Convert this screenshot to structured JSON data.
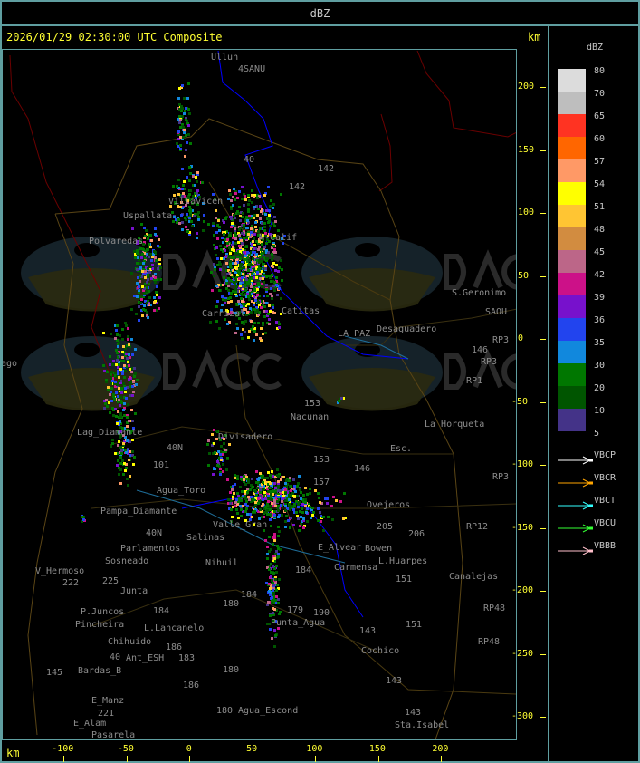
{
  "header": {
    "title": "dBZ"
  },
  "map": {
    "title": "2026/01/29 02:30:00 UTC Composite",
    "unit_top": "km",
    "unit_bottom": "km",
    "x_ticks": [
      "-100",
      "-50",
      "0",
      "50",
      "100",
      "150",
      "200"
    ],
    "y_ticks": [
      "200",
      "150",
      "100",
      "50",
      "0",
      "-50",
      "-100",
      "-150",
      "-200",
      "-250",
      "-300"
    ],
    "place_labels": [
      "Ullun",
      "4SANU",
      "Uspallata",
      "Polvaredas",
      "Villavicen",
      "40",
      "142",
      "142",
      "N-Calif",
      "Carrizal",
      "Catitas",
      "Desaguadero",
      "S.Geronimo",
      "SAOU",
      "LA PAZ",
      "146",
      "RP3",
      "RP3",
      "RP1",
      "153",
      "Nacunan",
      "La Horqueta",
      "Esc.",
      "153",
      "146",
      "157",
      "Divisadero",
      "Lag_Diamante",
      "40N",
      "101",
      "Agua_Toro",
      "Pampa_Diamante",
      "40N",
      "Parlamentos",
      "Sosneado",
      "V_Hermoso",
      "222",
      "225",
      "Junta",
      "Salinas",
      "Nihuil",
      "Valle_Gran",
      "Ovejeros",
      "205",
      "206",
      "E_Alvear",
      "Bowen",
      "Carmensa",
      "L.Huarpes",
      "151",
      "Canalejas",
      "RP12",
      "RP3",
      "184",
      "184",
      "180",
      "179",
      "190",
      "Punta_Agua",
      "151",
      "143",
      "Cochico",
      "143",
      "143",
      "Sta.Isabel",
      "P.Juncos",
      "Pincheira",
      "L.Lancanelo",
      "Chihuido",
      "40",
      "Ant_ESH",
      "186",
      "183",
      "145",
      "Bardas_B",
      "180",
      "186",
      "E_Manz",
      "221",
      "E_Alam",
      "Pasarela",
      "180",
      "Agua_Escond",
      "RP48",
      "RP48",
      "184",
      "ago"
    ],
    "watermark": {
      "logo": "DACC",
      "line1": "Dirección de Agricultura",
      "line2": "y Contingencias Climáticas",
      "url": "http://www.contingencias.mendoza.gov.ar"
    }
  },
  "legend": {
    "title": "dBZ",
    "scale": [
      {
        "label": "80",
        "color": "#dcdcdc"
      },
      {
        "label": "70",
        "color": "#bebebe"
      },
      {
        "label": "65",
        "color": "#ff3322"
      },
      {
        "label": "60",
        "color": "#ff6600"
      },
      {
        "label": "57",
        "color": "#ff9966"
      },
      {
        "label": "54",
        "color": "#ffff00"
      },
      {
        "label": "51",
        "color": "#ffc533"
      },
      {
        "label": "48",
        "color": "#d28c40"
      },
      {
        "label": "45",
        "color": "#bc6688"
      },
      {
        "label": "42",
        "color": "#cc1188"
      },
      {
        "label": "39",
        "color": "#7711cc"
      },
      {
        "label": "36",
        "color": "#2244ee"
      },
      {
        "label": "35",
        "color": "#1188dd"
      },
      {
        "label": "30",
        "color": "#007700"
      },
      {
        "label": "20",
        "color": "#005500"
      },
      {
        "label": "10",
        "color": "#443388"
      },
      {
        "label": "5",
        "color": ""
      }
    ],
    "radars": [
      {
        "label": "VBCP",
        "color": "#ffffff"
      },
      {
        "label": "VBCR",
        "color": "#ffa500"
      },
      {
        "label": "VBCT",
        "color": "#33ffff"
      },
      {
        "label": "VBCU",
        "color": "#33ff33"
      },
      {
        "label": "VBBB",
        "color": "#ffc0cb"
      }
    ]
  }
}
